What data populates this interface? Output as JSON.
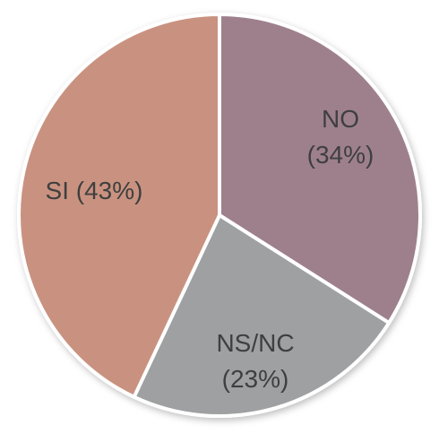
{
  "chart_data": {
    "type": "pie",
    "slices": [
      {
        "label_line1": "NO",
        "label_line2": "(34%)",
        "value": 34,
        "color": "#9e808d"
      },
      {
        "label_line1": "NS/NC",
        "label_line2": "(23%)",
        "value": 23,
        "color": "#9ea0a1"
      },
      {
        "label_line1": "SI (43%)",
        "label_line2": "",
        "value": 43,
        "color": "#c99280"
      }
    ],
    "start": "12 o'clock",
    "direction": "clockwise",
    "border_color": "#ffffff",
    "label_color": "#3f3f3f"
  }
}
